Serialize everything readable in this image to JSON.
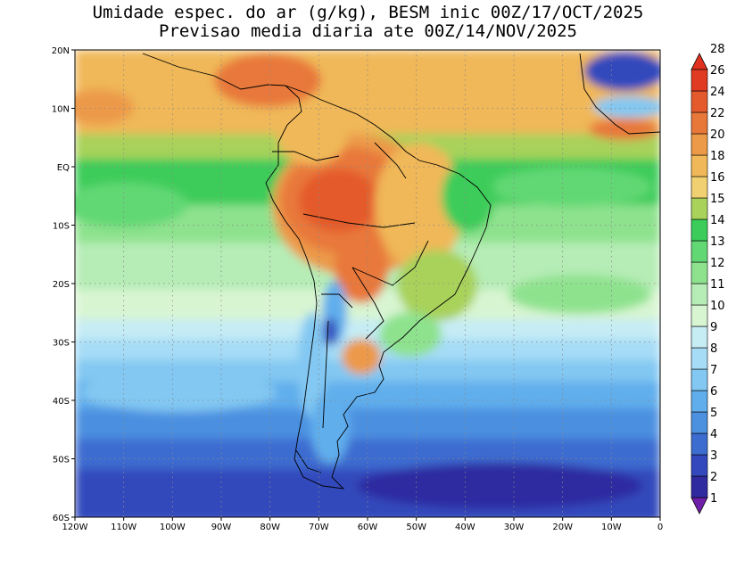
{
  "title": {
    "line1": "Umidade espec. do ar (g/kg), BESM inic 00Z/17/OCT/2025",
    "line2": "Previsao media diaria ate 00Z/14/NOV/2025"
  },
  "map": {
    "lat_ticks": [
      "20N",
      "10N",
      "EQ",
      "10S",
      "20S",
      "30S",
      "40S",
      "50S",
      "60S"
    ],
    "lon_ticks": [
      "120W",
      "110W",
      "100W",
      "90W",
      "80W",
      "70W",
      "60W",
      "50W",
      "40W",
      "30W",
      "20W",
      "10W",
      "0"
    ],
    "lon_range": [
      -120,
      0
    ],
    "lat_range": [
      -60,
      20
    ],
    "grid": "dotted"
  },
  "colorbar": {
    "levels": [
      "1",
      "2",
      "3",
      "4",
      "5",
      "6",
      "7",
      "8",
      "9",
      "10",
      "11",
      "12",
      "13",
      "14",
      "15",
      "16",
      "18",
      "20",
      "22",
      "24",
      "26",
      "28"
    ],
    "colors": [
      "#6f20a8",
      "#2f2aa0",
      "#3348bc",
      "#3d6cd0",
      "#4c90e0",
      "#61aeec",
      "#82c8f2",
      "#a6dcf6",
      "#c6ecf4",
      "#d8f5d2",
      "#b6ecb6",
      "#8ee28e",
      "#62d874",
      "#3ccc5a",
      "#a8d25a",
      "#f0d070",
      "#f0b858",
      "#ec9a48",
      "#e8783a",
      "#e45a2c",
      "#e03a22",
      "#e0301e"
    ],
    "extend": "both"
  }
}
